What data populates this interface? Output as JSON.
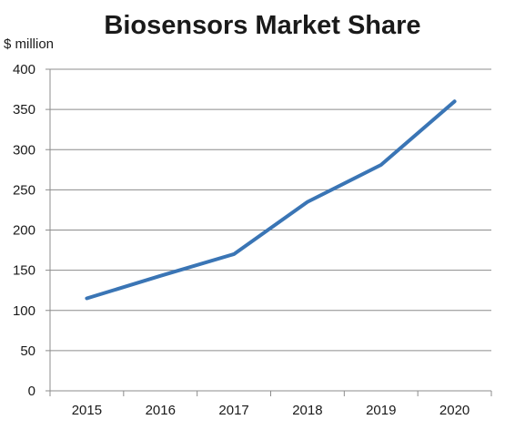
{
  "chart_data": {
    "type": "line",
    "title": "Biosensors Market Share",
    "xlabel": "",
    "ylabel": "$ million",
    "categories": [
      "2015",
      "2016",
      "2017",
      "2018",
      "2019",
      "2020"
    ],
    "series": [
      {
        "values": [
          115,
          143,
          170,
          235,
          281,
          360
        ],
        "color": "#3a75b5"
      }
    ],
    "ylim": [
      0,
      400
    ],
    "yticks": [
      "0",
      "50",
      "100",
      "150",
      "200",
      "250",
      "300",
      "350",
      "400"
    ],
    "grid": true,
    "legend": "none"
  }
}
